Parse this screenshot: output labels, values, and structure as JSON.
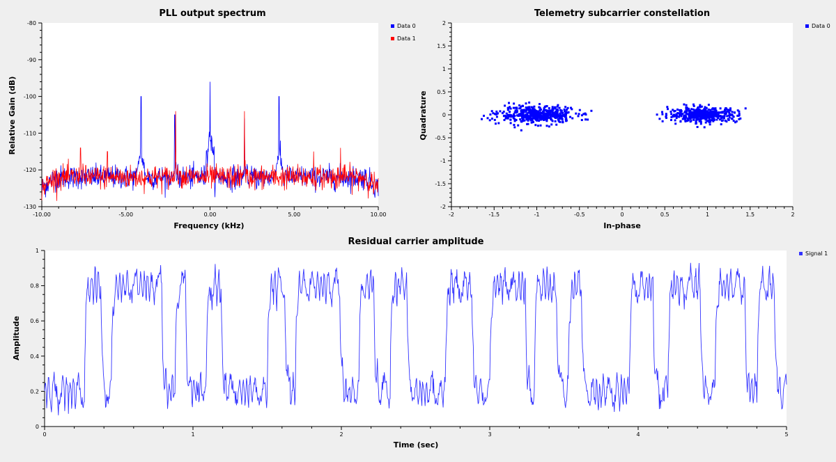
{
  "colors": {
    "blue": "#0000ff",
    "red": "#ff0000",
    "signal": "#3333ff",
    "background": "#efefef",
    "plot_bg": "#ffffff"
  },
  "chart_data": [
    {
      "id": "spectrum",
      "type": "line",
      "title": "PLL output spectrum",
      "xlabel": "Frequency (kHz)",
      "ylabel": "Relative Gain (dB)",
      "xlim": [
        -10,
        10
      ],
      "ylim": [
        -130,
        -80
      ],
      "xticks": [
        -10,
        -5,
        0,
        5,
        10
      ],
      "xtick_labels": [
        "-10.00",
        "-5.00",
        "0.00",
        "5.00",
        "10.00"
      ],
      "yticks": [
        -130,
        -120,
        -110,
        -100,
        -90,
        -80
      ],
      "ytick_labels": [
        "-130",
        "-120",
        "-110",
        "-100",
        "-90",
        "-80"
      ],
      "grid": false,
      "legend_position": "right",
      "noise_floor_db": -122,
      "edge_rolloff_db": -125,
      "series": [
        {
          "name": "Data 0",
          "color": "#0000ff",
          "peaks": [
            {
              "x": -4.1,
              "y": -100
            },
            {
              "x": -2.1,
              "y": -105
            },
            {
              "x": 0.0,
              "y": -96
            },
            {
              "x": 2.05,
              "y": -106
            },
            {
              "x": 4.1,
              "y": -100
            }
          ]
        },
        {
          "name": "Data 1",
          "color": "#ff0000",
          "peaks": [
            {
              "x": -7.7,
              "y": -114
            },
            {
              "x": -6.1,
              "y": -115
            },
            {
              "x": -2.05,
              "y": -104
            },
            {
              "x": 2.05,
              "y": -104
            },
            {
              "x": 6.15,
              "y": -115
            },
            {
              "x": 7.75,
              "y": -114
            }
          ]
        }
      ]
    },
    {
      "id": "constellation",
      "type": "scatter",
      "title": "Telemetry subcarrier constellation",
      "xlabel": "In-phase",
      "ylabel": "Quadrature",
      "xlim": [
        -2,
        2
      ],
      "ylim": [
        -2,
        2
      ],
      "xticks": [
        -2,
        -1.5,
        -1,
        -0.5,
        0,
        0.5,
        1,
        1.5,
        2
      ],
      "xtick_labels": [
        "-2",
        "-1.5",
        "-1",
        "-0.5",
        "0",
        "0.5",
        "1",
        "1.5",
        "2"
      ],
      "yticks": [
        -2,
        -1.5,
        -1,
        -0.5,
        0,
        0.5,
        1,
        1.5,
        2
      ],
      "ytick_labels": [
        "-2",
        "-1.5",
        "-1",
        "-0.5",
        "0",
        "0.5",
        "1",
        "1.5",
        "2"
      ],
      "grid": false,
      "legend_position": "right",
      "series": [
        {
          "name": "Data 0",
          "color": "#0000ff",
          "clusters": [
            {
              "cx": -1.0,
              "cy": 0.0,
              "sx": 0.22,
              "sy": 0.09,
              "n": 500
            },
            {
              "cx": 0.95,
              "cy": 0.0,
              "sx": 0.2,
              "sy": 0.08,
              "n": 450
            }
          ]
        }
      ]
    },
    {
      "id": "amplitude",
      "type": "line",
      "title": "Residual carrier amplitude",
      "xlabel": "Time (sec)",
      "ylabel": "Amplitude",
      "xlim": [
        0,
        5
      ],
      "ylim": [
        0,
        1
      ],
      "xticks": [
        0,
        1,
        2,
        3,
        4,
        5
      ],
      "xtick_labels": [
        "0",
        "1",
        "2",
        "3",
        "4",
        "5"
      ],
      "yticks": [
        0,
        0.2,
        0.4,
        0.6,
        0.8,
        1
      ],
      "ytick_labels": [
        "0",
        "0.2",
        "0.4",
        "0.6",
        "0.8",
        "1"
      ],
      "grid": false,
      "legend_position": "right",
      "series": [
        {
          "name": "Signal 1",
          "color": "#3333ff",
          "high_level": 0.8,
          "low_level": 0.2,
          "samples_per_bit": 1,
          "bit_segments": [
            {
              "t0": 0.0,
              "t1": 0.27,
              "level": 0.2
            },
            {
              "t0": 0.27,
              "t1": 0.38,
              "level": 0.8
            },
            {
              "t0": 0.38,
              "t1": 0.45,
              "level": 0.2
            },
            {
              "t0": 0.45,
              "t1": 0.79,
              "level": 0.8
            },
            {
              "t0": 0.79,
              "t1": 0.88,
              "level": 0.2
            },
            {
              "t0": 0.88,
              "t1": 0.95,
              "level": 0.8
            },
            {
              "t0": 0.95,
              "t1": 1.09,
              "level": 0.2
            },
            {
              "t0": 1.09,
              "t1": 1.19,
              "level": 0.8
            },
            {
              "t0": 1.19,
              "t1": 1.5,
              "level": 0.2
            },
            {
              "t0": 1.5,
              "t1": 1.62,
              "level": 0.8
            },
            {
              "t0": 1.62,
              "t1": 1.69,
              "level": 0.2
            },
            {
              "t0": 1.69,
              "t1": 1.99,
              "level": 0.8
            },
            {
              "t0": 1.99,
              "t1": 2.12,
              "level": 0.2
            },
            {
              "t0": 2.12,
              "t1": 2.22,
              "level": 0.8
            },
            {
              "t0": 2.22,
              "t1": 2.33,
              "level": 0.2
            },
            {
              "t0": 2.33,
              "t1": 2.44,
              "level": 0.8
            },
            {
              "t0": 2.44,
              "t1": 2.7,
              "level": 0.2
            },
            {
              "t0": 2.7,
              "t1": 2.88,
              "level": 0.8
            },
            {
              "t0": 2.88,
              "t1": 3.0,
              "level": 0.2
            },
            {
              "t0": 3.0,
              "t1": 3.24,
              "level": 0.8
            },
            {
              "t0": 3.24,
              "t1": 3.3,
              "level": 0.2
            },
            {
              "t0": 3.3,
              "t1": 3.45,
              "level": 0.8
            },
            {
              "t0": 3.45,
              "t1": 3.53,
              "level": 0.2
            },
            {
              "t0": 3.53,
              "t1": 3.62,
              "level": 0.8
            },
            {
              "t0": 3.62,
              "t1": 3.94,
              "level": 0.2
            },
            {
              "t0": 3.94,
              "t1": 4.1,
              "level": 0.8
            },
            {
              "t0": 4.1,
              "t1": 4.2,
              "level": 0.2
            },
            {
              "t0": 4.2,
              "t1": 4.42,
              "level": 0.8
            },
            {
              "t0": 4.42,
              "t1": 4.52,
              "level": 0.2
            },
            {
              "t0": 4.52,
              "t1": 4.72,
              "level": 0.8
            },
            {
              "t0": 4.72,
              "t1": 4.8,
              "level": 0.2
            },
            {
              "t0": 4.8,
              "t1": 4.92,
              "level": 0.8
            },
            {
              "t0": 4.92,
              "t1": 5.0,
              "level": 0.2
            }
          ]
        }
      ]
    }
  ]
}
